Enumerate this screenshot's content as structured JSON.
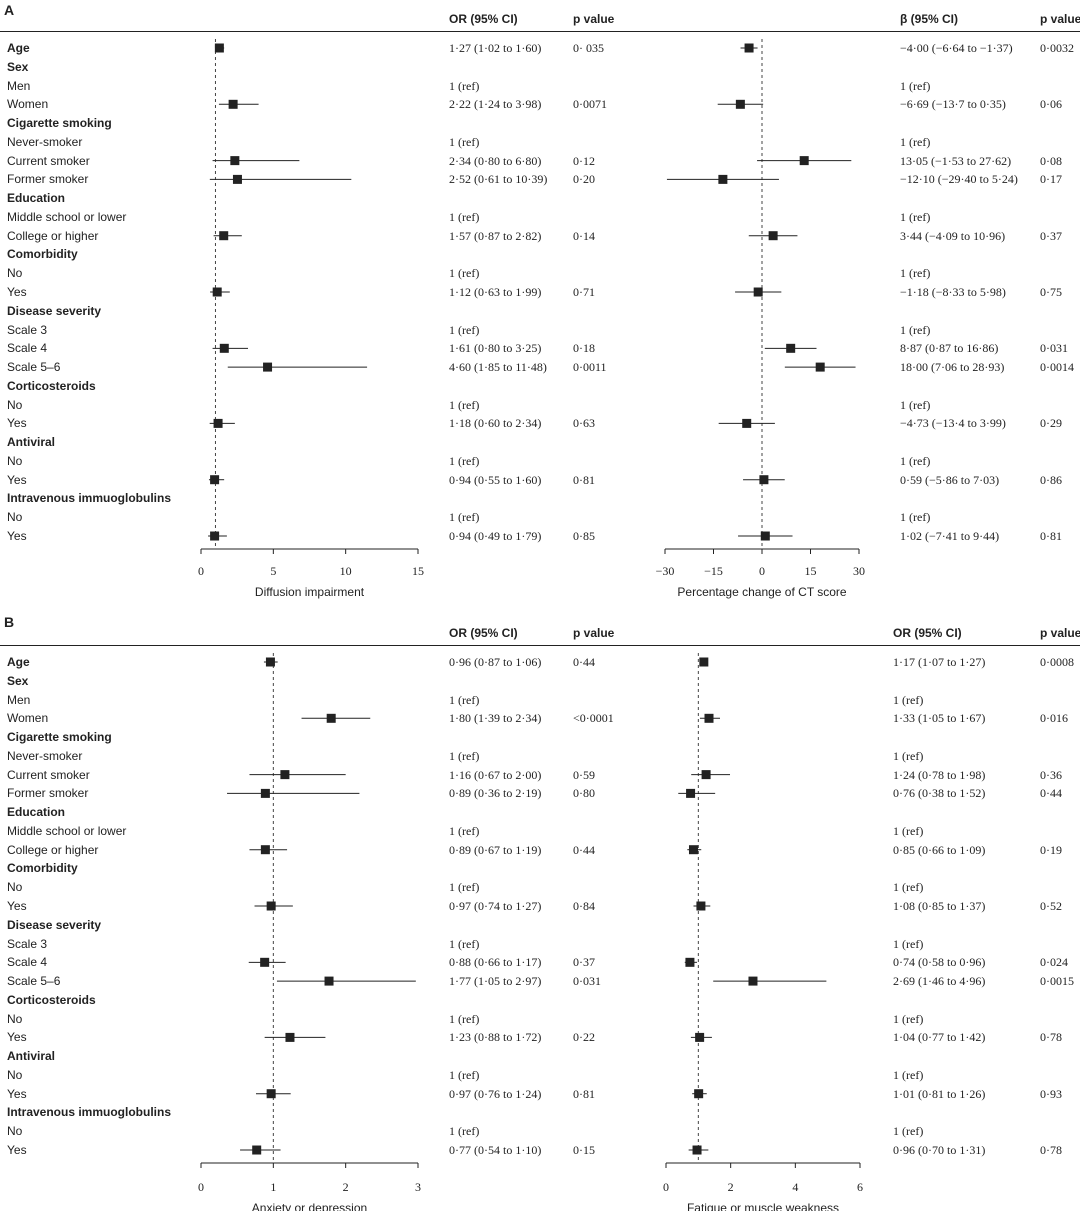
{
  "panels": [
    {
      "letter": "A",
      "left": {
        "col1_header": "OR (95% CI)",
        "col2_header": "p value",
        "xlabel": "Diffusion impairment",
        "xlim": [
          0,
          15
        ],
        "ticks": [
          0,
          5,
          10,
          15
        ],
        "ref_line": 1,
        "est": [
          1.27,
          null,
          null,
          2.22,
          null,
          null,
          2.34,
          2.52,
          null,
          null,
          1.57,
          null,
          null,
          1.12,
          null,
          null,
          1.61,
          4.6,
          null,
          null,
          1.18,
          null,
          null,
          0.94,
          null,
          null,
          0.94
        ],
        "lo": [
          1.02,
          null,
          null,
          1.24,
          null,
          null,
          0.8,
          0.61,
          null,
          null,
          0.87,
          null,
          null,
          0.63,
          null,
          null,
          0.8,
          1.85,
          null,
          null,
          0.6,
          null,
          null,
          0.55,
          null,
          null,
          0.49
        ],
        "hi": [
          1.6,
          null,
          null,
          3.98,
          null,
          null,
          6.8,
          10.39,
          null,
          null,
          2.82,
          null,
          null,
          1.99,
          null,
          null,
          3.25,
          11.48,
          null,
          null,
          2.34,
          null,
          null,
          1.6,
          null,
          null,
          1.79
        ],
        "ci_text": [
          "1·27 (1·02 to 1·60)",
          "",
          "1 (ref)",
          "2·22 (1·24 to 3·98)",
          "",
          "1 (ref)",
          "2·34 (0·80 to 6·80)",
          "2·52 (0·61 to 10·39)",
          "",
          "1 (ref)",
          "1·57 (0·87 to 2·82)",
          "",
          "1 (ref)",
          "1·12 (0·63 to 1·99)",
          "",
          "1 (ref)",
          "1·61 (0·80 to 3·25)",
          "4·60 (1·85 to 11·48)",
          "",
          "1 (ref)",
          "1·18 (0·60 to 2·34)",
          "",
          "1 (ref)",
          "0·94 (0·55 to 1·60)",
          "",
          "1 (ref)",
          "0·94 (0·49 to 1·79)"
        ],
        "p_text": [
          "0· 035",
          "",
          "",
          "0·0071",
          "",
          "",
          "0·12",
          "0·20",
          "",
          "",
          "0·14",
          "",
          "",
          "0·71",
          "",
          "",
          "0·18",
          "0·0011",
          "",
          "",
          "0·63",
          "",
          "",
          "0·81",
          "",
          "",
          "0·85"
        ]
      },
      "right": {
        "col1_header": "β (95% CI)",
        "col2_header": "p value",
        "xlabel": "Percentage change of CT score",
        "xlim": [
          -30,
          30
        ],
        "ticks": [
          -30,
          -15,
          0,
          15,
          30
        ],
        "tick_labels": [
          "−30",
          "−15",
          "0",
          "15",
          "30"
        ],
        "ref_line": 0,
        "est": [
          -4.0,
          null,
          null,
          -6.69,
          null,
          null,
          13.05,
          -12.1,
          null,
          null,
          3.44,
          null,
          null,
          -1.18,
          null,
          null,
          8.87,
          18.0,
          null,
          null,
          -4.73,
          null,
          null,
          0.59,
          null,
          null,
          1.02
        ],
        "lo": [
          -6.64,
          null,
          null,
          -13.7,
          null,
          null,
          -1.53,
          -29.4,
          null,
          null,
          -4.09,
          null,
          null,
          -8.33,
          null,
          null,
          0.87,
          7.06,
          null,
          null,
          -13.4,
          null,
          null,
          -5.86,
          null,
          null,
          -7.41
        ],
        "hi": [
          -1.37,
          null,
          null,
          0.35,
          null,
          null,
          27.62,
          5.24,
          null,
          null,
          10.96,
          null,
          null,
          5.98,
          null,
          null,
          16.86,
          28.93,
          null,
          null,
          3.99,
          null,
          null,
          7.03,
          null,
          null,
          9.44
        ],
        "ci_text": [
          "−4·00 (−6·64 to −1·37)",
          "",
          "1 (ref)",
          "−6·69 (−13·7 to 0·35)",
          "",
          "1 (ref)",
          "13·05 (−1·53 to 27·62)",
          "−12·10 (−29·40 to 5·24)",
          "",
          "1 (ref)",
          "3·44 (−4·09 to 10·96)",
          "",
          "1 (ref)",
          "−1·18 (−8·33 to 5·98)",
          "",
          "1 (ref)",
          "8·87 (0·87 to 16·86)",
          "18·00 (7·06 to 28·93)",
          "",
          "1 (ref)",
          "−4·73 (−13·4 to 3·99)",
          "",
          "1 (ref)",
          "0·59 (−5·86 to 7·03)",
          "",
          "1 (ref)",
          "1·02 (−7·41 to 9·44)"
        ],
        "p_text": [
          "0·0032",
          "",
          "",
          "0·06",
          "",
          "",
          "0·08",
          "0·17",
          "",
          "",
          "0·37",
          "",
          "",
          "0·75",
          "",
          "",
          "0·031",
          "0·0014",
          "",
          "",
          "0·29",
          "",
          "",
          "0·86",
          "",
          "",
          "0·81"
        ]
      }
    },
    {
      "letter": "B",
      "left": {
        "col1_header": "OR (95% CI)",
        "col2_header": "p value",
        "xlabel": "Anxiety or depression",
        "xlim": [
          0,
          3
        ],
        "ticks": [
          0,
          1,
          2,
          3
        ],
        "ref_line": 1,
        "est": [
          0.96,
          null,
          null,
          1.8,
          null,
          null,
          1.16,
          0.89,
          null,
          null,
          0.89,
          null,
          null,
          0.97,
          null,
          null,
          0.88,
          1.77,
          null,
          null,
          1.23,
          null,
          null,
          0.97,
          null,
          null,
          0.77
        ],
        "lo": [
          0.87,
          null,
          null,
          1.39,
          null,
          null,
          0.67,
          0.36,
          null,
          null,
          0.67,
          null,
          null,
          0.74,
          null,
          null,
          0.66,
          1.05,
          null,
          null,
          0.88,
          null,
          null,
          0.76,
          null,
          null,
          0.54
        ],
        "hi": [
          1.06,
          null,
          null,
          2.34,
          null,
          null,
          2.0,
          2.19,
          null,
          null,
          1.19,
          null,
          null,
          1.27,
          null,
          null,
          1.17,
          2.97,
          null,
          null,
          1.72,
          null,
          null,
          1.24,
          null,
          null,
          1.1
        ],
        "ci_text": [
          "0·96 (0·87 to 1·06)",
          "",
          "1 (ref)",
          "1·80 (1·39 to 2·34)",
          "",
          "1 (ref)",
          "1·16 (0·67 to 2·00)",
          "0·89 (0·36 to 2·19)",
          "",
          "1 (ref)",
          "0·89 (0·67 to 1·19)",
          "",
          "1 (ref)",
          "0·97 (0·74 to 1·27)",
          "",
          "1 (ref)",
          "0·88 (0·66 to 1·17)",
          "1·77 (1·05 to 2·97)",
          "",
          "1 (ref)",
          "1·23 (0·88 to 1·72)",
          "",
          "1 (ref)",
          "0·97 (0·76 to 1·24)",
          "",
          "1 (ref)",
          "0·77 (0·54 to 1·10)"
        ],
        "p_text": [
          "0·44",
          "",
          "",
          "<0·0001",
          "",
          "",
          "0·59",
          "0·80",
          "",
          "",
          "0·44",
          "",
          "",
          "0·84",
          "",
          "",
          "0·37",
          "0·031",
          "",
          "",
          "0·22",
          "",
          "",
          "0·81",
          "",
          "",
          "0·15"
        ]
      },
      "right": {
        "col1_header": "OR (95% CI)",
        "col2_header": "p value",
        "xlabel": "Fatigue or muscle weakness",
        "xlim": [
          0,
          6
        ],
        "ticks": [
          0,
          2,
          4,
          6
        ],
        "ref_line": 1,
        "est": [
          1.17,
          null,
          null,
          1.33,
          null,
          null,
          1.24,
          0.76,
          null,
          null,
          0.85,
          null,
          null,
          1.08,
          null,
          null,
          0.74,
          2.69,
          null,
          null,
          1.04,
          null,
          null,
          1.01,
          null,
          null,
          0.96
        ],
        "lo": [
          1.07,
          null,
          null,
          1.05,
          null,
          null,
          0.78,
          0.38,
          null,
          null,
          0.66,
          null,
          null,
          0.85,
          null,
          null,
          0.58,
          1.46,
          null,
          null,
          0.77,
          null,
          null,
          0.81,
          null,
          null,
          0.7
        ],
        "hi": [
          1.27,
          null,
          null,
          1.67,
          null,
          null,
          1.98,
          1.52,
          null,
          null,
          1.09,
          null,
          null,
          1.37,
          null,
          null,
          0.96,
          4.96,
          null,
          null,
          1.42,
          null,
          null,
          1.26,
          null,
          null,
          1.31
        ],
        "ci_text": [
          "1·17 (1·07 to 1·27)",
          "",
          "1 (ref)",
          "1·33 (1·05 to 1·67)",
          "",
          "1 (ref)",
          "1·24 (0·78 to 1·98)",
          "0·76 (0·38 to 1·52)",
          "",
          "1 (ref)",
          "0·85 (0·66 to 1·09)",
          "",
          "1 (ref)",
          "1·08 (0·85 to 1·37)",
          "",
          "1 (ref)",
          "0·74 (0·58 to 0·96)",
          "2·69 (1·46 to 4·96)",
          "",
          "1 (ref)",
          "1·04 (0·77 to 1·42)",
          "",
          "1 (ref)",
          "1·01 (0·81 to 1·26)",
          "",
          "1 (ref)",
          "0·96 (0·70 to 1·31)"
        ],
        "p_text": [
          "0·0008",
          "",
          "",
          "0·016",
          "",
          "",
          "0·36",
          "0·44",
          "",
          "",
          "0·19",
          "",
          "",
          "0·52",
          "",
          "",
          "0·024",
          "0·0015",
          "",
          "",
          "0·78",
          "",
          "",
          "0·93",
          "",
          "",
          "0·78"
        ]
      }
    }
  ],
  "row_labels": [
    "Age",
    "Sex",
    "Men",
    "Women",
    "Cigarette smoking",
    "Never-smoker",
    "Current smoker",
    "Former smoker",
    "Education",
    "Middle school or lower",
    "College or higher",
    "Comorbidity",
    "No",
    "Yes",
    "Disease severity",
    "Scale 3",
    "Scale 4",
    "Scale 5–6",
    "Corticosteroids",
    "No",
    "Yes",
    "Antiviral",
    "No",
    "Yes",
    "Intravenous immuoglobulins",
    "No",
    "Yes"
  ],
  "row_is_category": [
    true,
    true,
    false,
    false,
    true,
    false,
    false,
    false,
    true,
    false,
    false,
    true,
    false,
    false,
    true,
    false,
    false,
    false,
    true,
    false,
    false,
    true,
    false,
    false,
    true,
    false,
    false
  ],
  "chart_data": [
    {
      "type": "forest",
      "title": "A",
      "xlabel": "Diffusion impairment",
      "xlim": [
        0,
        15
      ],
      "reference": 1,
      "categories": [
        "Age",
        "Women",
        "Current smoker",
        "Former smoker",
        "College or higher",
        "Comorbidity: Yes",
        "Scale 4",
        "Scale 5–6",
        "Corticosteroids: Yes",
        "Antiviral: Yes",
        "Intravenous immuoglobulins: Yes"
      ],
      "values": [
        1.27,
        2.22,
        2.34,
        2.52,
        1.57,
        1.12,
        1.61,
        4.6,
        1.18,
        0.94,
        0.94
      ],
      "lower": [
        1.02,
        1.24,
        0.8,
        0.61,
        0.87,
        0.63,
        0.8,
        1.85,
        0.6,
        0.55,
        0.49
      ],
      "upper": [
        1.6,
        3.98,
        6.8,
        10.39,
        2.82,
        1.99,
        3.25,
        11.48,
        2.34,
        1.6,
        1.79
      ]
    },
    {
      "type": "forest",
      "title": "A",
      "xlabel": "Percentage change of CT score",
      "xlim": [
        -30,
        30
      ],
      "reference": 0,
      "categories": [
        "Age",
        "Women",
        "Current smoker",
        "Former smoker",
        "College or higher",
        "Comorbidity: Yes",
        "Scale 4",
        "Scale 5–6",
        "Corticosteroids: Yes",
        "Antiviral: Yes",
        "Intravenous immuoglobulins: Yes"
      ],
      "values": [
        -4.0,
        -6.69,
        13.05,
        -12.1,
        3.44,
        -1.18,
        8.87,
        18.0,
        -4.73,
        0.59,
        1.02
      ],
      "lower": [
        -6.64,
        -13.7,
        -1.53,
        -29.4,
        -4.09,
        -8.33,
        0.87,
        7.06,
        -13.4,
        -5.86,
        -7.41
      ],
      "upper": [
        -1.37,
        0.35,
        27.62,
        5.24,
        10.96,
        5.98,
        16.86,
        28.93,
        3.99,
        7.03,
        9.44
      ]
    },
    {
      "type": "forest",
      "title": "B",
      "xlabel": "Anxiety or depression",
      "xlim": [
        0,
        3
      ],
      "reference": 1,
      "categories": [
        "Age",
        "Women",
        "Current smoker",
        "Former smoker",
        "College or higher",
        "Comorbidity: Yes",
        "Scale 4",
        "Scale 5–6",
        "Corticosteroids: Yes",
        "Antiviral: Yes",
        "Intravenous immuoglobulins: Yes"
      ],
      "values": [
        0.96,
        1.8,
        1.16,
        0.89,
        0.89,
        0.97,
        0.88,
        1.77,
        1.23,
        0.97,
        0.77
      ],
      "lower": [
        0.87,
        1.39,
        0.67,
        0.36,
        0.67,
        0.74,
        0.66,
        1.05,
        0.88,
        0.76,
        0.54
      ],
      "upper": [
        1.06,
        2.34,
        2.0,
        2.19,
        1.19,
        1.27,
        1.17,
        2.97,
        1.72,
        1.24,
        1.1
      ]
    },
    {
      "type": "forest",
      "title": "B",
      "xlabel": "Fatigue or muscle weakness",
      "xlim": [
        0,
        6
      ],
      "reference": 1,
      "categories": [
        "Age",
        "Women",
        "Current smoker",
        "Former smoker",
        "College or higher",
        "Comorbidity: Yes",
        "Scale 4",
        "Scale 5–6",
        "Corticosteroids: Yes",
        "Antiviral: Yes",
        "Intravenous immuoglobulins: Yes"
      ],
      "values": [
        1.17,
        1.33,
        1.24,
        0.76,
        0.85,
        1.08,
        0.74,
        2.69,
        1.04,
        1.01,
        0.96
      ],
      "lower": [
        1.07,
        1.05,
        0.78,
        0.38,
        0.66,
        0.85,
        0.58,
        1.46,
        0.77,
        0.81,
        0.7
      ],
      "upper": [
        1.27,
        1.67,
        1.98,
        1.52,
        1.09,
        1.37,
        0.96,
        4.96,
        1.42,
        1.26,
        1.31
      ]
    }
  ]
}
